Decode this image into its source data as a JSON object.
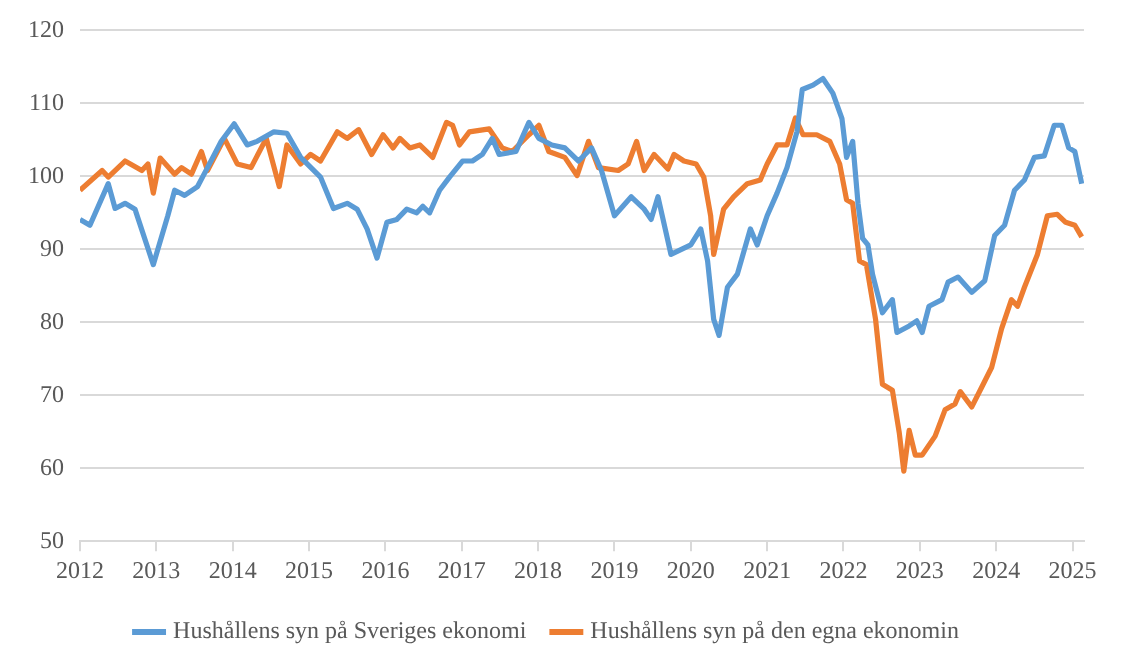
{
  "chart_data": {
    "type": "line",
    "xlim": [
      2012,
      2025.15
    ],
    "xticks": [
      2012,
      2013,
      2014,
      2015,
      2016,
      2017,
      2018,
      2019,
      2020,
      2021,
      2022,
      2023,
      2024,
      2025
    ],
    "ylim": [
      50,
      120
    ],
    "yticks": [
      50,
      60,
      70,
      80,
      90,
      100,
      110,
      120
    ],
    "grid": "y",
    "legend": "bottom",
    "marker": "none",
    "line_style": "solid",
    "series": [
      {
        "name": "Hushållens syn på Sveriges ekonomi",
        "color": "#5b9bd5",
        "x": [
          2012.0,
          2012.13,
          2012.37,
          2012.46,
          2012.59,
          2012.72,
          2012.96,
          2013.15,
          2013.24,
          2013.37,
          2013.54,
          2013.67,
          2013.85,
          2014.02,
          2014.19,
          2014.32,
          2014.54,
          2014.71,
          2014.89,
          2015.15,
          2015.32,
          2015.5,
          2015.63,
          2015.76,
          2015.89,
          2016.02,
          2016.15,
          2016.28,
          2016.41,
          2016.49,
          2016.58,
          2016.71,
          2016.84,
          2017.01,
          2017.14,
          2017.27,
          2017.4,
          2017.49,
          2017.71,
          2017.88,
          2018.01,
          2018.18,
          2018.35,
          2018.53,
          2018.7,
          2018.83,
          2019.0,
          2019.22,
          2019.39,
          2019.48,
          2019.57,
          2019.74,
          2020.0,
          2020.13,
          2020.22,
          2020.3,
          2020.37,
          2020.48,
          2020.61,
          2020.78,
          2020.87,
          2021.0,
          2021.13,
          2021.26,
          2021.39,
          2021.46,
          2021.6,
          2021.73,
          2021.86,
          2021.98,
          2022.04,
          2022.12,
          2022.19,
          2022.25,
          2022.32,
          2022.38,
          2022.51,
          2022.64,
          2022.7,
          2022.86,
          2022.96,
          2023.03,
          2023.12,
          2023.29,
          2023.37,
          2023.5,
          2023.68,
          2023.85,
          2023.98,
          2024.11,
          2024.24,
          2024.37,
          2024.5,
          2024.63,
          2024.76,
          2024.86,
          2024.95,
          2025.03,
          2025.12
        ],
        "values": [
          94.1,
          93.3,
          99,
          95.6,
          96.3,
          95.5,
          87.9,
          94.6,
          98.1,
          97.4,
          98.6,
          101.2,
          104.8,
          107.2,
          104.3,
          104.8,
          106.1,
          105.9,
          102.6,
          99.9,
          95.6,
          96.3,
          95.5,
          92.8,
          88.8,
          93.7,
          94.1,
          95.5,
          95.0,
          95.9,
          95.0,
          98.1,
          99.9,
          102.1,
          102.1,
          103,
          105.2,
          103,
          103.4,
          107.4,
          105.2,
          104.3,
          103.9,
          102.1,
          103.9,
          100.8,
          94.6,
          97.2,
          95.5,
          94.1,
          97.2,
          89.3,
          90.6,
          92.8,
          88.4,
          80.4,
          78.2,
          84.8,
          86.6,
          92.8,
          90.6,
          94.6,
          97.7,
          101.2,
          106.1,
          111.9,
          112.5,
          113.4,
          111.4,
          107.9,
          102.6,
          104.8,
          96.3,
          91.5,
          90.6,
          86.6,
          81.3,
          83.1,
          78.6,
          79.5,
          80.2,
          78.6,
          82.2,
          83.1,
          85.5,
          86.2,
          84.1,
          85.7,
          91.9,
          93.3,
          98.1,
          99.5,
          102.6,
          102.8,
          107,
          107,
          103.9,
          103.4,
          99
        ]
      },
      {
        "name": "Hushållens syn på den egna ekonomin",
        "color": "#ed7d31",
        "x": [
          2012.0,
          2012.29,
          2012.37,
          2012.59,
          2012.81,
          2012.89,
          2012.96,
          2013.05,
          2013.24,
          2013.33,
          2013.46,
          2013.59,
          2013.67,
          2013.89,
          2014.06,
          2014.24,
          2014.44,
          2014.61,
          2014.71,
          2014.89,
          2015.02,
          2015.15,
          2015.37,
          2015.5,
          2015.65,
          2015.82,
          2015.97,
          2016.1,
          2016.19,
          2016.32,
          2016.45,
          2016.62,
          2016.8,
          2016.88,
          2016.97,
          2017.1,
          2017.36,
          2017.53,
          2017.66,
          2017.88,
          2018.01,
          2018.14,
          2018.35,
          2018.51,
          2018.66,
          2018.79,
          2019.05,
          2019.18,
          2019.29,
          2019.39,
          2019.52,
          2019.7,
          2019.78,
          2019.91,
          2020.07,
          2020.17,
          2020.26,
          2020.3,
          2020.43,
          2020.56,
          2020.74,
          2020.91,
          2021.0,
          2021.13,
          2021.26,
          2021.37,
          2021.47,
          2021.65,
          2021.82,
          2021.95,
          2022.04,
          2022.12,
          2022.21,
          2022.3,
          2022.42,
          2022.51,
          2022.64,
          2022.73,
          2022.79,
          2022.86,
          2022.94,
          2023.03,
          2023.2,
          2023.33,
          2023.46,
          2023.53,
          2023.68,
          2023.81,
          2023.94,
          2024.07,
          2024.2,
          2024.28,
          2024.37,
          2024.54,
          2024.67,
          2024.8,
          2024.91,
          2025.03,
          2025.12
        ],
        "values": [
          98.1,
          100.8,
          99.9,
          102.1,
          100.8,
          101.7,
          97.7,
          102.5,
          100.3,
          101.2,
          100.3,
          103.4,
          100.8,
          105.2,
          101.7,
          101.2,
          105.2,
          98.6,
          104.3,
          101.7,
          103.0,
          102.1,
          106.1,
          105.2,
          106.4,
          103,
          105.7,
          103.9,
          105.2,
          103.9,
          104.3,
          102.6,
          107.4,
          107,
          104.3,
          106.1,
          106.5,
          103.9,
          103.4,
          105.7,
          107,
          103.4,
          102.6,
          100.1,
          104.8,
          101.2,
          100.8,
          101.7,
          104.8,
          100.8,
          103,
          101,
          103,
          102.1,
          101.7,
          99.9,
          94.6,
          89.3,
          95.5,
          97.2,
          99,
          99.5,
          101.7,
          104.3,
          104.3,
          108,
          105.7,
          105.7,
          104.8,
          101.7,
          96.8,
          96.3,
          88.4,
          87.9,
          80.4,
          71.5,
          70.7,
          64.9,
          59.6,
          65.2,
          61.8,
          61.8,
          64.4,
          68,
          68.8,
          70.5,
          68.4,
          71.1,
          73.8,
          79.1,
          83.1,
          82.2,
          84.8,
          89.3,
          94.6,
          94.8,
          93.7,
          93.3,
          91.7
        ]
      }
    ]
  }
}
